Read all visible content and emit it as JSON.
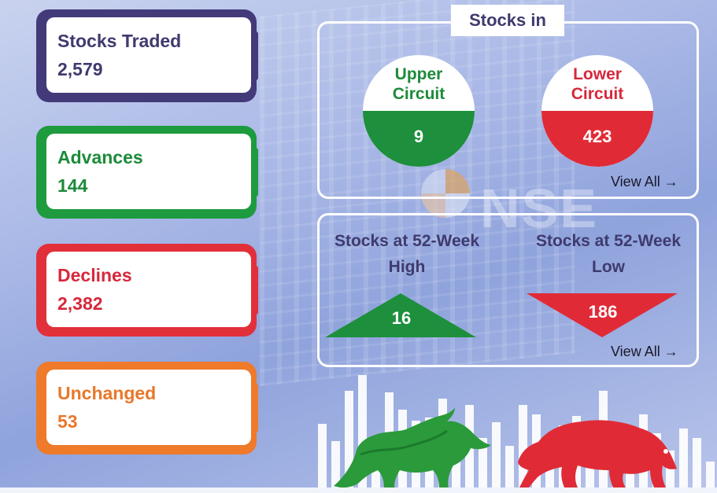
{
  "stats": {
    "traded": {
      "label": "Stocks Traded",
      "value": "2,579"
    },
    "advances": {
      "label": "Advances",
      "value": "144"
    },
    "declines": {
      "label": "Declines",
      "value": "2,382"
    },
    "unchanged": {
      "label": "Unchanged",
      "value": "53"
    }
  },
  "circuit": {
    "title": "Stocks in",
    "upper": {
      "line1": "Upper",
      "line2": "Circuit",
      "value": "9"
    },
    "lower": {
      "line1": "Lower",
      "line2": "Circuit",
      "value": "423"
    },
    "view_all": "View All →"
  },
  "week52": {
    "high": {
      "line1": "Stocks at 52-Week",
      "line2": "High",
      "value": "16"
    },
    "low": {
      "line1": "Stocks at 52-Week",
      "line2": "Low",
      "value": "186"
    },
    "view_all": "View All →"
  },
  "background": {
    "logo_text": "NSE"
  },
  "colors": {
    "purple": "#433a7a",
    "green": "#1e8f3c",
    "red": "#e02b36",
    "orange": "#ee7a2a"
  },
  "icons": [
    "bull-icon",
    "bear-icon"
  ]
}
